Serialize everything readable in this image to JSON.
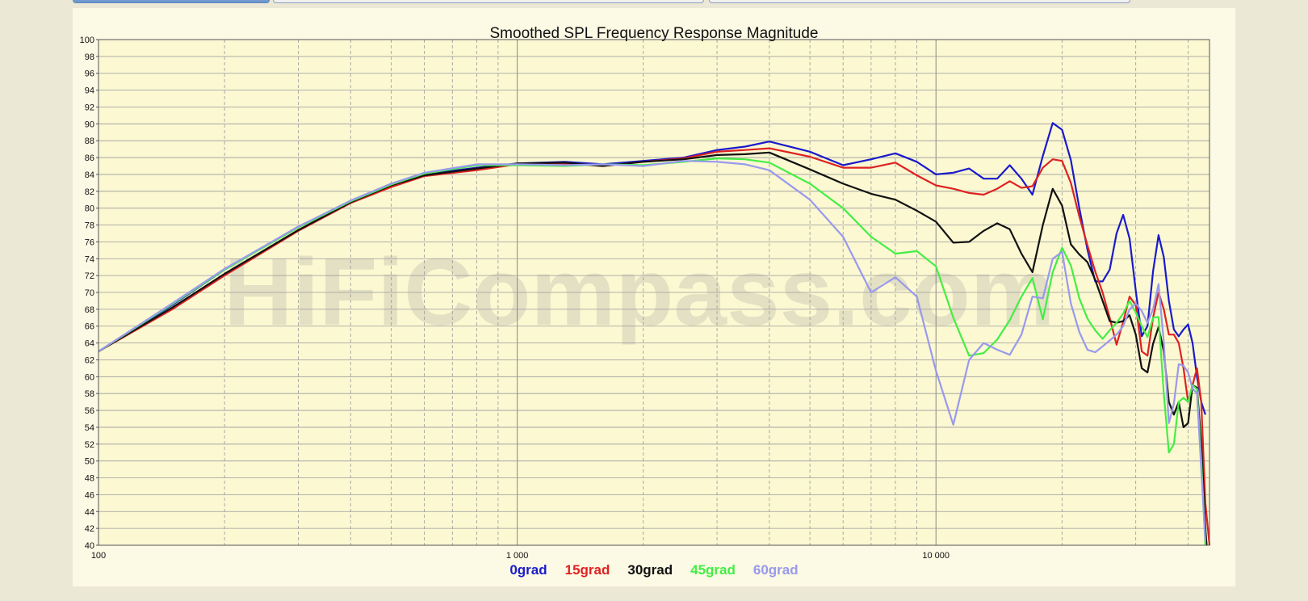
{
  "tabs": [
    {
      "label": "",
      "active": true
    },
    {
      "label": "",
      "active": false
    },
    {
      "label": "",
      "active": false
    }
  ],
  "watermark": "HiFiCompass.com",
  "chart_data": {
    "type": "line",
    "title": "Smoothed SPL Frequency Response Magnitude",
    "x_scale": "log",
    "xlim": [
      100,
      45000
    ],
    "ylim": [
      40,
      100
    ],
    "x_tick_labels": [
      {
        "value": 100,
        "label": "100"
      },
      {
        "value": 1000,
        "label": "1 000"
      },
      {
        "value": 10000,
        "label": "10 000"
      }
    ],
    "y_ticks": [
      40,
      42,
      44,
      46,
      48,
      50,
      52,
      54,
      56,
      58,
      60,
      62,
      64,
      66,
      68,
      70,
      72,
      74,
      76,
      78,
      80,
      82,
      84,
      86,
      88,
      90,
      92,
      94,
      96,
      98,
      100
    ],
    "grid": true,
    "legend_position": "bottom-center",
    "series": [
      {
        "name": "0grad",
        "color": "#1a1acc",
        "points": [
          [
            100,
            63
          ],
          [
            150,
            68.5
          ],
          [
            200,
            72.7
          ],
          [
            300,
            77.8
          ],
          [
            400,
            80.8
          ],
          [
            500,
            82.9
          ],
          [
            600,
            84
          ],
          [
            800,
            84.8
          ],
          [
            1000,
            85.3
          ],
          [
            1300,
            85.5
          ],
          [
            1600,
            85.2
          ],
          [
            2000,
            85.6
          ],
          [
            2500,
            86
          ],
          [
            3000,
            86.9
          ],
          [
            3500,
            87.3
          ],
          [
            4000,
            87.9
          ],
          [
            5000,
            86.7
          ],
          [
            6000,
            85.1
          ],
          [
            7000,
            85.8
          ],
          [
            8000,
            86.5
          ],
          [
            9000,
            85.5
          ],
          [
            10000,
            84
          ],
          [
            11000,
            84.2
          ],
          [
            12000,
            84.7
          ],
          [
            13000,
            83.5
          ],
          [
            14000,
            83.5
          ],
          [
            15000,
            85.1
          ],
          [
            16000,
            83.5
          ],
          [
            17000,
            81.6
          ],
          [
            18000,
            86.2
          ],
          [
            19000,
            90.1
          ],
          [
            20000,
            89.3
          ],
          [
            21000,
            85.7
          ],
          [
            22000,
            80
          ],
          [
            23000,
            75.1
          ],
          [
            24000,
            71.3
          ],
          [
            25000,
            71.3
          ],
          [
            26000,
            72.7
          ],
          [
            27000,
            77
          ],
          [
            28000,
            79.2
          ],
          [
            29000,
            76.4
          ],
          [
            30000,
            70.2
          ],
          [
            31000,
            64.8
          ],
          [
            32000,
            66
          ],
          [
            33000,
            72.5
          ],
          [
            34000,
            76.8
          ],
          [
            35000,
            74.2
          ],
          [
            36000,
            69
          ],
          [
            37000,
            65.6
          ],
          [
            38000,
            64.8
          ],
          [
            39000,
            65.6
          ],
          [
            40000,
            66.2
          ],
          [
            41000,
            64
          ],
          [
            42000,
            60
          ],
          [
            43000,
            57
          ],
          [
            44000,
            55.5
          ]
        ]
      },
      {
        "name": "15grad",
        "color": "#dd2222",
        "points": [
          [
            100,
            63
          ],
          [
            150,
            68
          ],
          [
            200,
            72
          ],
          [
            300,
            77.3
          ],
          [
            400,
            80.6
          ],
          [
            500,
            82.5
          ],
          [
            600,
            83.8
          ],
          [
            800,
            84.5
          ],
          [
            1000,
            85.2
          ],
          [
            1300,
            85.3
          ],
          [
            1600,
            85
          ],
          [
            2000,
            85.5
          ],
          [
            2500,
            85.9
          ],
          [
            3000,
            86.7
          ],
          [
            3500,
            86.9
          ],
          [
            4000,
            87.1
          ],
          [
            5000,
            86.1
          ],
          [
            6000,
            84.8
          ],
          [
            7000,
            84.8
          ],
          [
            8000,
            85.4
          ],
          [
            9000,
            83.9
          ],
          [
            10000,
            82.7
          ],
          [
            11000,
            82.3
          ],
          [
            12000,
            81.8
          ],
          [
            13000,
            81.6
          ],
          [
            14000,
            82.3
          ],
          [
            15000,
            83.2
          ],
          [
            16000,
            82.4
          ],
          [
            17000,
            82.6
          ],
          [
            18000,
            84.8
          ],
          [
            19000,
            85.8
          ],
          [
            20000,
            85.6
          ],
          [
            21000,
            83
          ],
          [
            22000,
            79
          ],
          [
            23000,
            75.6
          ],
          [
            24000,
            72.5
          ],
          [
            25000,
            70
          ],
          [
            26000,
            67
          ],
          [
            27000,
            63.8
          ],
          [
            28000,
            66.5
          ],
          [
            29000,
            69.5
          ],
          [
            30000,
            68.5
          ],
          [
            31000,
            63
          ],
          [
            32000,
            62.5
          ],
          [
            33000,
            67
          ],
          [
            34000,
            70
          ],
          [
            35000,
            68
          ],
          [
            36000,
            65
          ],
          [
            37000,
            65
          ],
          [
            38000,
            64
          ],
          [
            39000,
            61
          ],
          [
            40000,
            57
          ],
          [
            41000,
            59
          ],
          [
            42000,
            61
          ],
          [
            43000,
            57
          ],
          [
            44000,
            45
          ],
          [
            44700,
            41.5
          ],
          [
            45000,
            40
          ]
        ]
      },
      {
        "name": "30grad",
        "color": "#111111",
        "points": [
          [
            100,
            63
          ],
          [
            150,
            68.2
          ],
          [
            200,
            72.2
          ],
          [
            300,
            77.4
          ],
          [
            400,
            80.7
          ],
          [
            500,
            82.7
          ],
          [
            600,
            83.9
          ],
          [
            800,
            84.7
          ],
          [
            1000,
            85.3
          ],
          [
            1300,
            85.4
          ],
          [
            1600,
            85
          ],
          [
            2000,
            85.5
          ],
          [
            2500,
            85.8
          ],
          [
            3000,
            86.3
          ],
          [
            3500,
            86.4
          ],
          [
            4000,
            86.6
          ],
          [
            5000,
            84.6
          ],
          [
            6000,
            82.9
          ],
          [
            7000,
            81.7
          ],
          [
            8000,
            81
          ],
          [
            9000,
            79.7
          ],
          [
            10000,
            78.4
          ],
          [
            11000,
            75.9
          ],
          [
            12000,
            76
          ],
          [
            13000,
            77.3
          ],
          [
            14000,
            78.2
          ],
          [
            15000,
            77.5
          ],
          [
            16000,
            74.6
          ],
          [
            17000,
            72.4
          ],
          [
            18000,
            78
          ],
          [
            19000,
            82.3
          ],
          [
            20000,
            80.3
          ],
          [
            21000,
            75.7
          ],
          [
            22000,
            74.5
          ],
          [
            23000,
            73.6
          ],
          [
            24000,
            71.5
          ],
          [
            25000,
            69
          ],
          [
            26000,
            66.6
          ],
          [
            27000,
            66.4
          ],
          [
            28000,
            66.6
          ],
          [
            29000,
            67.3
          ],
          [
            30000,
            65
          ],
          [
            31000,
            61
          ],
          [
            32000,
            60.5
          ],
          [
            33000,
            63.9
          ],
          [
            34000,
            65.9
          ],
          [
            35000,
            63
          ],
          [
            36000,
            57
          ],
          [
            37000,
            55.5
          ],
          [
            38000,
            57
          ],
          [
            39000,
            54
          ],
          [
            40000,
            54.5
          ],
          [
            41000,
            59
          ],
          [
            42000,
            58.7
          ],
          [
            43000,
            52
          ],
          [
            44000,
            42
          ],
          [
            44300,
            40
          ]
        ]
      },
      {
        "name": "45grad",
        "color": "#44ee44",
        "points": [
          [
            100,
            63
          ],
          [
            150,
            68.6
          ],
          [
            200,
            72.7
          ],
          [
            300,
            77.7
          ],
          [
            400,
            80.8
          ],
          [
            500,
            82.8
          ],
          [
            600,
            84.1
          ],
          [
            800,
            85.1
          ],
          [
            1000,
            85.1
          ],
          [
            1300,
            85
          ],
          [
            1600,
            85.2
          ],
          [
            2000,
            85.1
          ],
          [
            2500,
            85.5
          ],
          [
            3000,
            85.9
          ],
          [
            3500,
            85.8
          ],
          [
            4000,
            85.4
          ],
          [
            5000,
            82.9
          ],
          [
            6000,
            80
          ],
          [
            7000,
            76.6
          ],
          [
            8000,
            74.6
          ],
          [
            9000,
            74.9
          ],
          [
            10000,
            73.1
          ],
          [
            11000,
            67
          ],
          [
            12000,
            62.5
          ],
          [
            13000,
            62.8
          ],
          [
            14000,
            64.4
          ],
          [
            15000,
            66.7
          ],
          [
            16000,
            69.5
          ],
          [
            17000,
            71.7
          ],
          [
            18000,
            66.8
          ],
          [
            19000,
            72.4
          ],
          [
            20000,
            75.3
          ],
          [
            21000,
            73.2
          ],
          [
            22000,
            69.3
          ],
          [
            23000,
            66.9
          ],
          [
            24000,
            65.5
          ],
          [
            25000,
            64.5
          ],
          [
            26000,
            65.5
          ],
          [
            27000,
            66.4
          ],
          [
            28000,
            67.5
          ],
          [
            29000,
            69
          ],
          [
            30000,
            67.6
          ],
          [
            31000,
            66
          ],
          [
            32000,
            64.7
          ],
          [
            33000,
            67
          ],
          [
            34000,
            67.1
          ],
          [
            35000,
            58
          ],
          [
            36000,
            51
          ],
          [
            37000,
            52
          ],
          [
            38000,
            57
          ],
          [
            39000,
            57.5
          ],
          [
            40000,
            57
          ],
          [
            41000,
            59
          ],
          [
            42000,
            58.5
          ],
          [
            43000,
            50
          ],
          [
            44000,
            40
          ]
        ]
      },
      {
        "name": "60grad",
        "color": "#9999ee",
        "points": [
          [
            100,
            63
          ],
          [
            150,
            68.7
          ],
          [
            200,
            72.8
          ],
          [
            300,
            77.8
          ],
          [
            400,
            80.9
          ],
          [
            500,
            82.9
          ],
          [
            600,
            84.2
          ],
          [
            800,
            85.2
          ],
          [
            1000,
            85.2
          ],
          [
            1300,
            85.1
          ],
          [
            1600,
            85.2
          ],
          [
            2000,
            85
          ],
          [
            2500,
            85.6
          ],
          [
            3000,
            85.5
          ],
          [
            3500,
            85.2
          ],
          [
            4000,
            84.5
          ],
          [
            5000,
            81
          ],
          [
            6000,
            76.6
          ],
          [
            7000,
            70
          ],
          [
            8000,
            71.8
          ],
          [
            9000,
            69.5
          ],
          [
            10000,
            60.7
          ],
          [
            11000,
            54.3
          ],
          [
            12000,
            62
          ],
          [
            13000,
            64
          ],
          [
            14000,
            63.2
          ],
          [
            15000,
            62.6
          ],
          [
            16000,
            65
          ],
          [
            17000,
            69.5
          ],
          [
            18000,
            69.3
          ],
          [
            19000,
            74
          ],
          [
            20000,
            74.8
          ],
          [
            21000,
            68.7
          ],
          [
            22000,
            65.3
          ],
          [
            23000,
            63.2
          ],
          [
            24000,
            62.9
          ],
          [
            25000,
            63.6
          ],
          [
            26000,
            64.3
          ],
          [
            27000,
            65
          ],
          [
            28000,
            66
          ],
          [
            29000,
            68
          ],
          [
            30000,
            68.7
          ],
          [
            31000,
            67.8
          ],
          [
            32000,
            66.4
          ],
          [
            33000,
            68
          ],
          [
            34000,
            71
          ],
          [
            35000,
            64.1
          ],
          [
            36000,
            54.5
          ],
          [
            37000,
            56.8
          ],
          [
            38000,
            61.5
          ],
          [
            39000,
            61.3
          ],
          [
            40000,
            60.5
          ],
          [
            41000,
            58.6
          ],
          [
            42000,
            58
          ],
          [
            43000,
            49
          ],
          [
            44000,
            40.5
          ]
        ]
      }
    ]
  }
}
